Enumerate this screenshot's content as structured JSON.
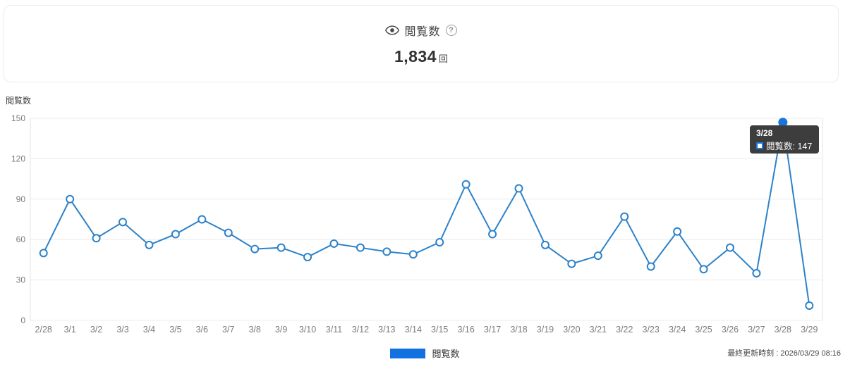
{
  "header": {
    "title": "閲覧数",
    "total": "1,834",
    "unit": "回"
  },
  "chart_data": {
    "type": "line",
    "title": "閲覧数",
    "ylabel": "閲覧数",
    "xlabel": "",
    "categories": [
      "2/28",
      "3/1",
      "3/2",
      "3/3",
      "3/4",
      "3/5",
      "3/6",
      "3/7",
      "3/8",
      "3/9",
      "3/10",
      "3/11",
      "3/12",
      "3/13",
      "3/14",
      "3/15",
      "3/16",
      "3/17",
      "3/18",
      "3/19",
      "3/20",
      "3/21",
      "3/22",
      "3/23",
      "3/24",
      "3/25",
      "3/26",
      "3/27",
      "3/28",
      "3/29"
    ],
    "series": [
      {
        "name": "閲覧数",
        "values": [
          50,
          90,
          61,
          73,
          56,
          64,
          75,
          65,
          53,
          54,
          47,
          57,
          54,
          51,
          49,
          58,
          101,
          64,
          98,
          56,
          42,
          48,
          77,
          40,
          66,
          38,
          54,
          35,
          147,
          11
        ]
      }
    ],
    "total": 1834,
    "ylim": [
      0,
      150
    ],
    "yticks": [
      0,
      30,
      60,
      90,
      120,
      150
    ],
    "grid": "horizontal",
    "legend_position": "bottom",
    "line_color": "#2c82c9",
    "marker_fill": "#ffffff",
    "active_point": {
      "index": 28,
      "category": "3/28",
      "value": 147,
      "color": "#1677d9"
    }
  },
  "tooltip": {
    "date": "3/28",
    "series": "閲覧数",
    "value_text": ": 147"
  },
  "legend": {
    "label": "閲覧数",
    "swatch_color": "#1171e0"
  },
  "footer": {
    "last_updated": "最終更新時刻 : 2026/03/29 08:16"
  }
}
